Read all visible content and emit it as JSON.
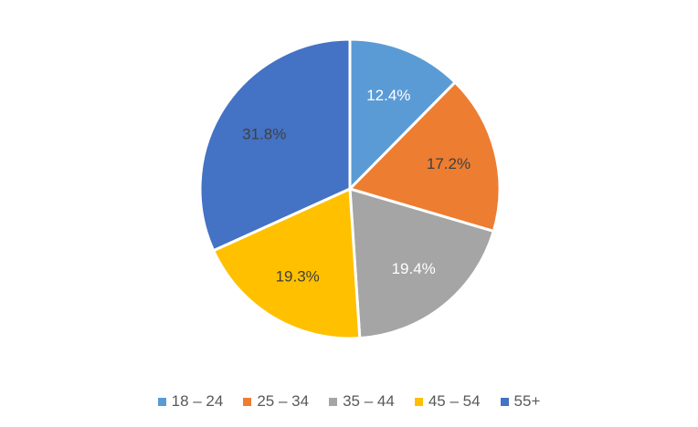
{
  "chart_data": {
    "type": "pie",
    "title": "",
    "categories": [
      "18 – 24",
      "25 – 34",
      "35 – 44",
      "45 – 54",
      "55+"
    ],
    "values": [
      12.4,
      17.2,
      19.4,
      19.3,
      31.8
    ],
    "labels": [
      "12.4%",
      "17.2%",
      "19.4%",
      "19.3%",
      "31.8%"
    ],
    "colors": [
      "#5B9BD5",
      "#ED7D31",
      "#A5A5A5",
      "#FFC000",
      "#4472C4"
    ],
    "label_colors": [
      "#ffffff",
      "#404040",
      "#ffffff",
      "#404040",
      "#404040"
    ],
    "start_angle_deg": 0,
    "direction": "clockwise",
    "legend_position": "bottom"
  },
  "legend": {
    "items": [
      {
        "label": "18 – 24",
        "color": "#5B9BD5"
      },
      {
        "label": "25 – 34",
        "color": "#ED7D31"
      },
      {
        "label": "35 – 44",
        "color": "#A5A5A5"
      },
      {
        "label": "45 – 54",
        "color": "#FFC000"
      },
      {
        "label": "55+",
        "color": "#4472C4"
      }
    ]
  }
}
